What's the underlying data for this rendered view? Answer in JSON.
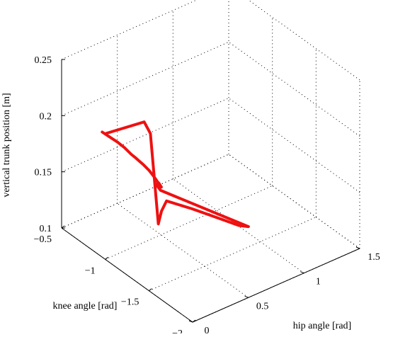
{
  "chart_data": {
    "type": "line3d",
    "title": "",
    "xlabel": "knee angle [rad]",
    "ylabel": "hip angle [rad]",
    "zlabel": "vertical trunk position [m]",
    "xlim": [
      -2,
      -0.5
    ],
    "ylim": [
      0,
      1.5
    ],
    "zlim": [
      0.1,
      0.25
    ],
    "xticks": [
      "−2",
      "−1.5",
      "−1",
      "−0.5"
    ],
    "yticks": [
      "0",
      "0.5",
      "1",
      "1.5"
    ],
    "zticks": [
      "0.1",
      "0.15",
      "0.2",
      "0.25"
    ],
    "grid": true,
    "series": [
      {
        "color": "#ee1111",
        "points": [
          [
            -0.85,
            0.09,
            0.201
          ],
          [
            -0.9,
            0.12,
            0.198
          ],
          [
            -0.95,
            0.15,
            0.195
          ],
          [
            -0.99,
            0.18,
            0.191
          ],
          [
            -1.03,
            0.21,
            0.186
          ],
          [
            -1.03,
            0.25,
            0.181
          ],
          [
            -1.01,
            0.29,
            0.176
          ],
          [
            -0.99,
            0.33,
            0.171
          ],
          [
            -0.97,
            0.37,
            0.166
          ],
          [
            -0.98,
            0.41,
            0.16
          ],
          [
            -1.0,
            0.44,
            0.154
          ],
          [
            -1.04,
            0.46,
            0.148
          ],
          [
            -1.03,
            0.48,
            0.145
          ],
          [
            -1.0,
            0.48,
            0.147
          ],
          [
            -0.97,
            0.48,
            0.144
          ],
          [
            -0.97,
            0.52,
            0.137
          ],
          [
            -1.3,
            1.05,
            0.1
          ],
          [
            -1.28,
            0.98,
            0.103
          ],
          [
            -1.21,
            0.88,
            0.109
          ],
          [
            -1.1,
            0.7,
            0.12
          ],
          [
            -1.0,
            0.55,
            0.128
          ],
          [
            -0.98,
            0.52,
            0.119
          ],
          [
            -0.97,
            0.5,
            0.108
          ],
          [
            -0.93,
            0.46,
            0.188
          ],
          [
            -0.91,
            0.42,
            0.199
          ],
          [
            -0.88,
            0.1,
            0.201
          ]
        ]
      }
    ]
  }
}
